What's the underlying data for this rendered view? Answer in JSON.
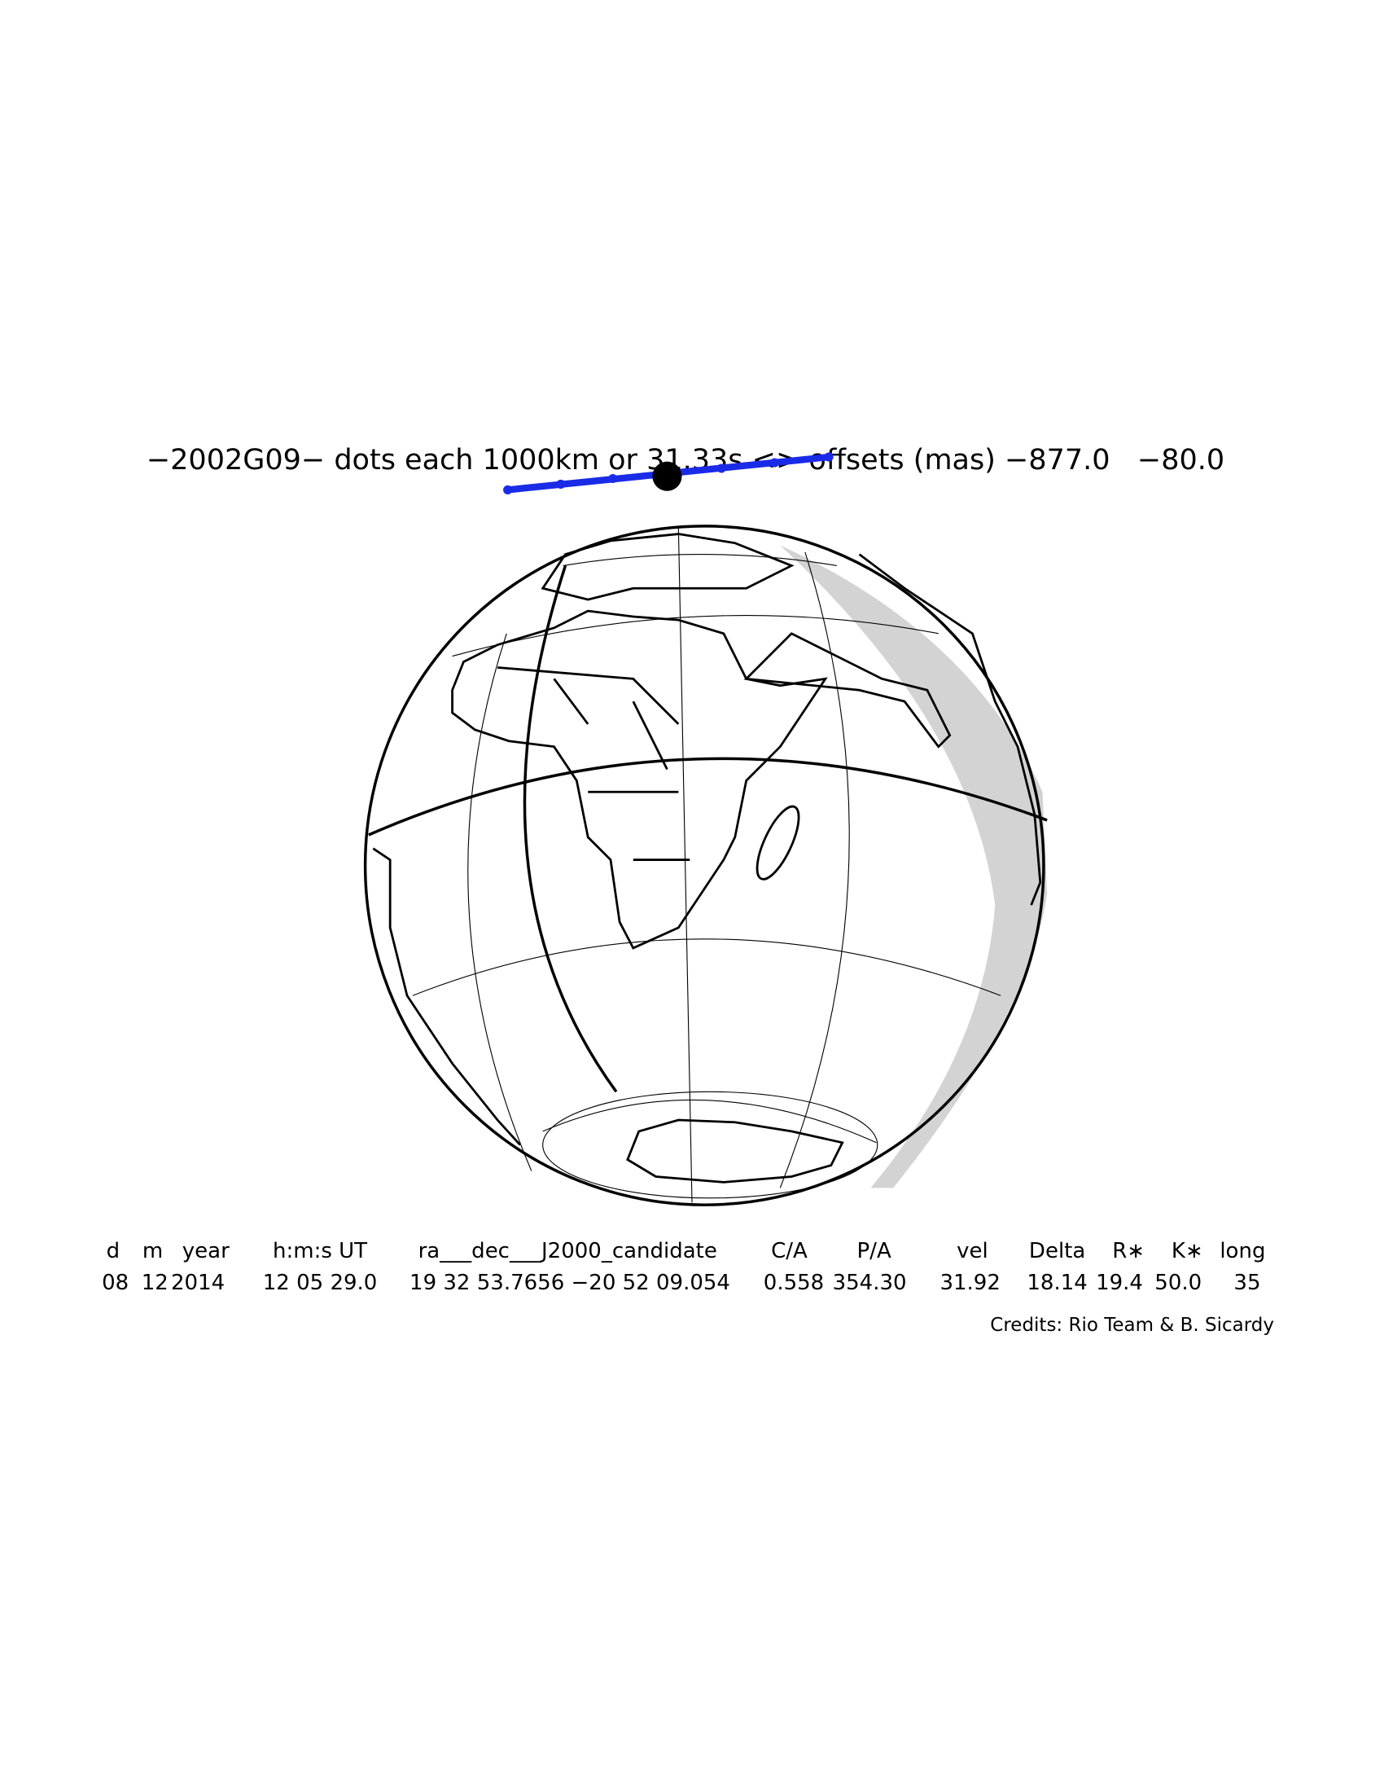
{
  "title": "−2002G09− dots each 1000km or 31.33s <> offsets (mas) −877.0   −80.0",
  "table": {
    "header": [
      "d",
      "m",
      "year",
      "h:m:s UT",
      "ra___dec___J2000_candidate",
      "C/A",
      "P/A",
      "vel",
      "Delta",
      "R∗",
      "K∗",
      "long"
    ],
    "rows": [
      [
        "08",
        "12",
        "2014",
        "12 05 29.0",
        "19 32 53.7656 −20 52 09.054",
        "0.558",
        "354.30",
        "31.92",
        "18.14",
        "19.4",
        "50.0",
        "35"
      ]
    ]
  },
  "credits": "Credits: Rio Team & B. Sicardy"
}
